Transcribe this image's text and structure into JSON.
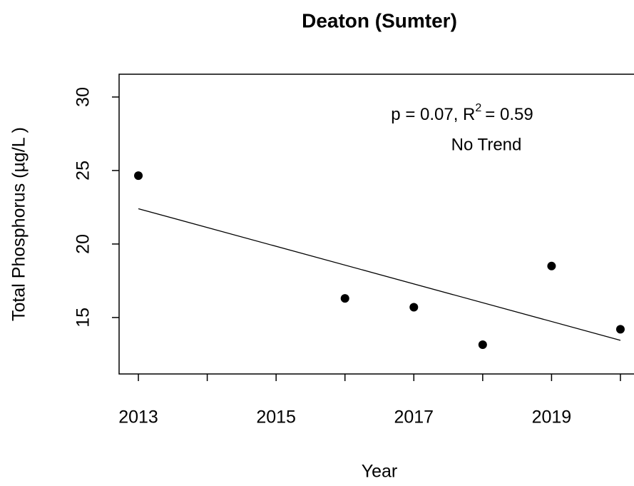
{
  "chart_data": {
    "type": "scatter",
    "title": "Deaton (Sumter)",
    "x_label": "Year",
    "y_label": "Total Phosphorus (µg/L )",
    "x": [
      2013,
      2016,
      2017,
      2018,
      2019,
      2020
    ],
    "values": [
      24.65,
      16.3,
      15.7,
      13.15,
      18.5,
      14.2
    ],
    "color": "#000000",
    "trend": {
      "x": [
        2013,
        2020
      ],
      "values": [
        22.4,
        13.45
      ],
      "color": "#000000"
    },
    "annotation": {
      "p_part": "p = 0.07, R",
      "sup": "2",
      "r_part": "= 0.59",
      "trend_label": "No Trend"
    },
    "xlim": [
      2012.72,
      2020.28
    ],
    "ylim": [
      11.16,
      31.55
    ],
    "xticks": [
      2013,
      {
        "value": 2014,
        "label": null
      },
      2015,
      {
        "value": 2016,
        "label": null
      },
      2017,
      {
        "value": 2018,
        "label": null
      },
      2019,
      {
        "value": 2020,
        "label": null
      }
    ],
    "yticks": [
      15,
      20,
      25,
      30
    ]
  }
}
